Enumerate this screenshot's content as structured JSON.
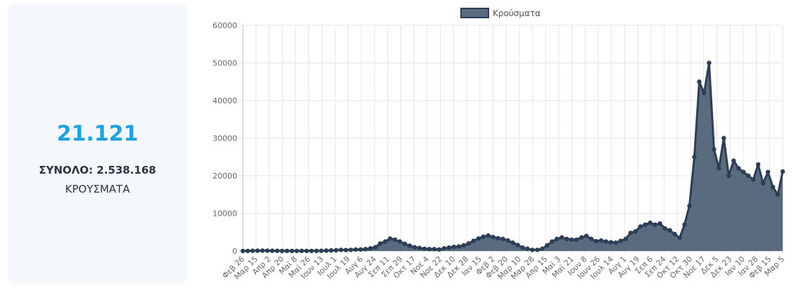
{
  "summary": {
    "value": "21.121",
    "total_label": "ΣΥΝΟΛΟ: 2.538.168",
    "label": "ΚΡΟΥΣΜΑΤΑ"
  },
  "colors": {
    "accent": "#1aa3e3",
    "fill": "#5b6b7f",
    "line": "#2c3e55"
  },
  "chart_data": {
    "type": "line",
    "grid": true,
    "legend_position": "top",
    "ylim": [
      0,
      60000
    ],
    "yticks": [
      0,
      10000,
      20000,
      30000,
      40000,
      50000,
      60000
    ],
    "xticks": [
      "Φεβ 26",
      "Μαρ 15",
      "Απρ 2",
      "Απρ 20",
      "Μαϊ 8",
      "Μαϊ 26",
      "Ιουν 13",
      "Ιουλ 1",
      "Ιουλ 19",
      "Αυγ 6",
      "Αυγ 24",
      "Σεπ 11",
      "Σεπ 29",
      "Οκτ 17",
      "Νοε 4",
      "Νοε 22",
      "Δεκ 10",
      "Δεκ 28",
      "Ιαν 15",
      "Φεβ 2",
      "Φεβ 20",
      "Μαρ 10",
      "Μαρ 28",
      "Απρ 15",
      "Μαϊ 3",
      "Μαϊ 21",
      "Ιουν 8",
      "Ιουν 26",
      "Ιουλ 14",
      "Αυγ 1",
      "Αυγ 19",
      "Σεπ 6",
      "Σεπ 24",
      "Οκτ 12",
      "Οκτ 30",
      "Νοε 17",
      "Δεκ 5",
      "Δεκ 23",
      "Ιαν 10",
      "Ιαν 28",
      "Φεβ 15",
      "Μαρ 5"
    ],
    "series": [
      {
        "name": "Κρούσματα",
        "values": [
          0,
          10,
          50,
          80,
          100,
          90,
          60,
          40,
          20,
          15,
          10,
          20,
          30,
          20,
          20,
          30,
          50,
          100,
          150,
          200,
          300,
          250,
          300,
          400,
          400,
          500,
          700,
          1000,
          2000,
          2500,
          3300,
          3000,
          2500,
          1900,
          1400,
          1000,
          800,
          600,
          500,
          500,
          400,
          700,
          900,
          1100,
          1200,
          1500,
          2000,
          2700,
          3300,
          3800,
          4100,
          3700,
          3400,
          3200,
          2800,
          2200,
          1600,
          900,
          600,
          300,
          300,
          600,
          1500,
          2500,
          3200,
          3600,
          3200,
          3000,
          3000,
          3600,
          4000,
          3200,
          2600,
          2800,
          2500,
          2300,
          2200,
          2700,
          3200,
          4800,
          5200,
          6500,
          7000,
          7500,
          7000,
          7300,
          6000,
          5500,
          4500,
          3500,
          7000,
          12000,
          25000,
          45000,
          42000,
          50000,
          27000,
          22000,
          30000,
          20000,
          24000,
          22000,
          21000,
          20000,
          19000,
          23000,
          18000,
          21000,
          17000,
          15000,
          21121
        ]
      }
    ]
  }
}
